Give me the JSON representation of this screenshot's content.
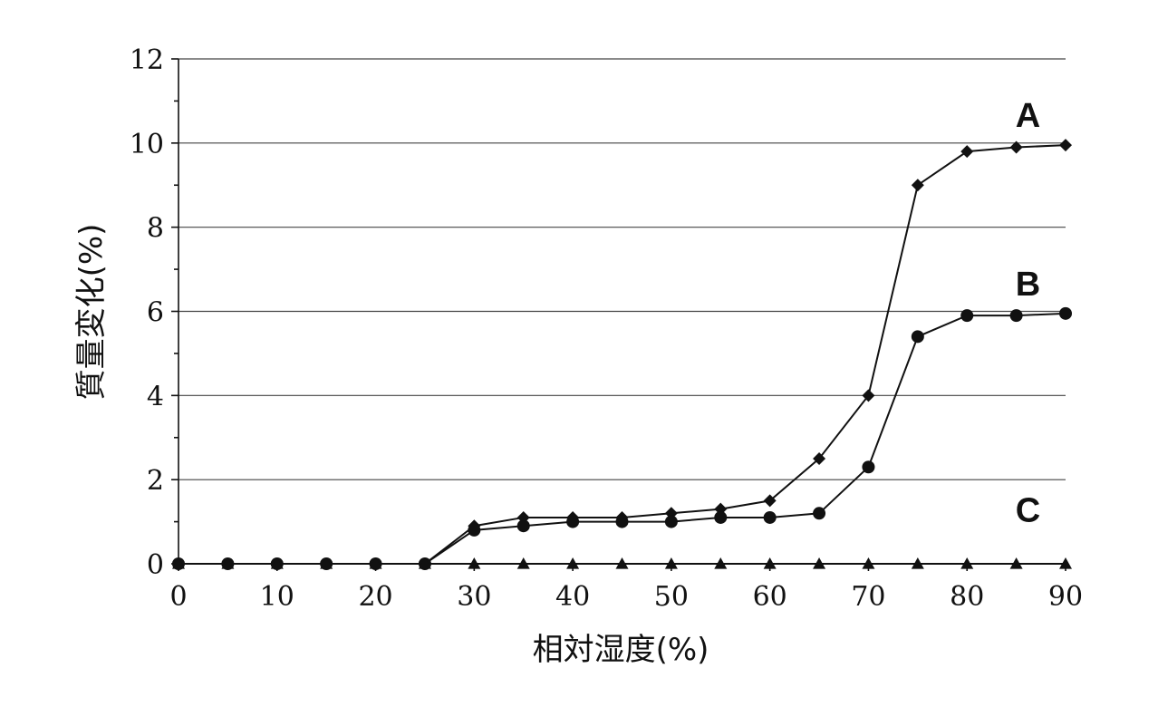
{
  "chart_data": {
    "type": "line",
    "xlabel": "相対湿度(%)",
    "ylabel": "質量変化(%)",
    "xlim": [
      0,
      90
    ],
    "ylim": [
      0,
      12
    ],
    "x_ticks": [
      0,
      10,
      20,
      30,
      40,
      50,
      60,
      70,
      80,
      90
    ],
    "y_ticks": [
      0,
      2,
      4,
      6,
      8,
      10,
      12
    ],
    "grid": "horizontal",
    "x": [
      0,
      5,
      10,
      15,
      20,
      25,
      30,
      35,
      40,
      45,
      50,
      55,
      60,
      65,
      70,
      75,
      80,
      85,
      90
    ],
    "series": [
      {
        "name": "A",
        "marker": "diamond",
        "values": [
          0,
          0,
          0,
          0,
          0,
          0,
          0.9,
          1.1,
          1.1,
          1.1,
          1.2,
          1.3,
          1.5,
          2.5,
          4.0,
          9.0,
          9.8,
          9.9,
          9.95
        ]
      },
      {
        "name": "B",
        "marker": "circle",
        "values": [
          0,
          0,
          0,
          0,
          0,
          0,
          0.8,
          0.9,
          1.0,
          1.0,
          1.0,
          1.1,
          1.1,
          1.2,
          2.3,
          5.4,
          5.9,
          5.9,
          5.95
        ]
      },
      {
        "name": "C",
        "marker": "triangle",
        "values": [
          0,
          0,
          0,
          0,
          0,
          0,
          0,
          0,
          0,
          0,
          0,
          0,
          0,
          0,
          0,
          0,
          0,
          0,
          0
        ]
      }
    ]
  }
}
